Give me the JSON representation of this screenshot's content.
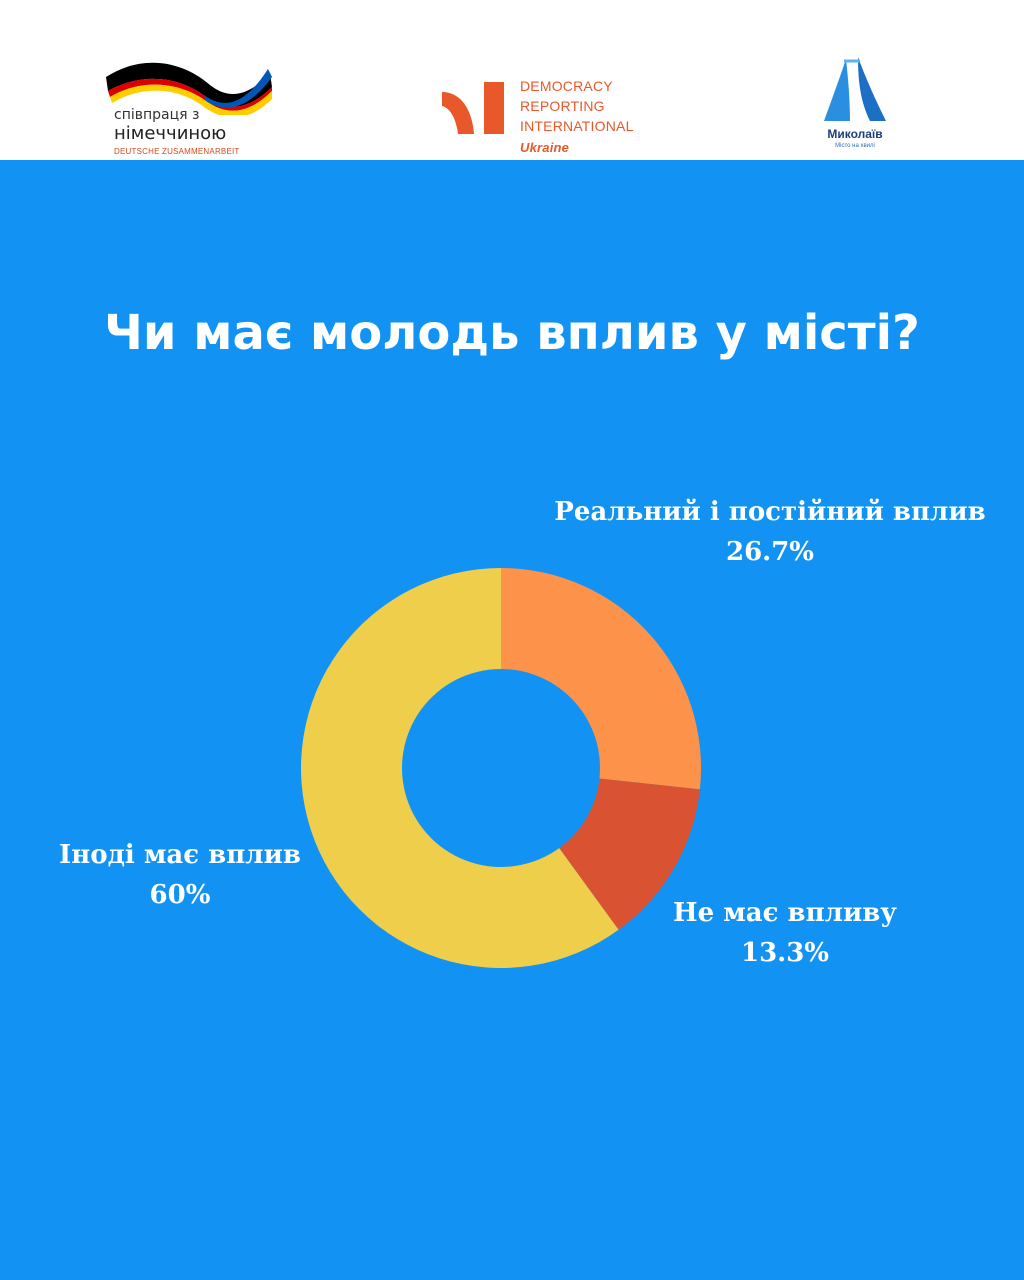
{
  "header": {
    "logo_german": {
      "line1": "співпраця з",
      "line2": "німеччиною",
      "line3": "DEUTSCHE ZUSAMMENARBEIT"
    },
    "logo_dri": {
      "line1": "DEMOCRACY",
      "line2": "REPORTING",
      "line3": "INTERNATIONAL",
      "line4": "Ukraine"
    },
    "logo_city": {
      "name": "Миколаїв",
      "tagline": "Місто на хвилі"
    }
  },
  "colors": {
    "background": "#1293f4",
    "slice_real": "#fd924b",
    "slice_ne": "#d95332",
    "slice_inodi": "#efce4b"
  },
  "chart_data": {
    "type": "pie",
    "variant": "donut",
    "title": "Чи має молодь вплив у місті?",
    "categories": [
      "Реальний і постійний вплив",
      "Не має впливу",
      "Іноді має вплив"
    ],
    "values": [
      26.7,
      13.3,
      60
    ],
    "value_labels": [
      "26.7%",
      "13.3%",
      "60%"
    ],
    "colors": [
      "#fd924b",
      "#d95332",
      "#efce4b"
    ],
    "start_angle_deg": 0,
    "direction": "clockwise"
  }
}
